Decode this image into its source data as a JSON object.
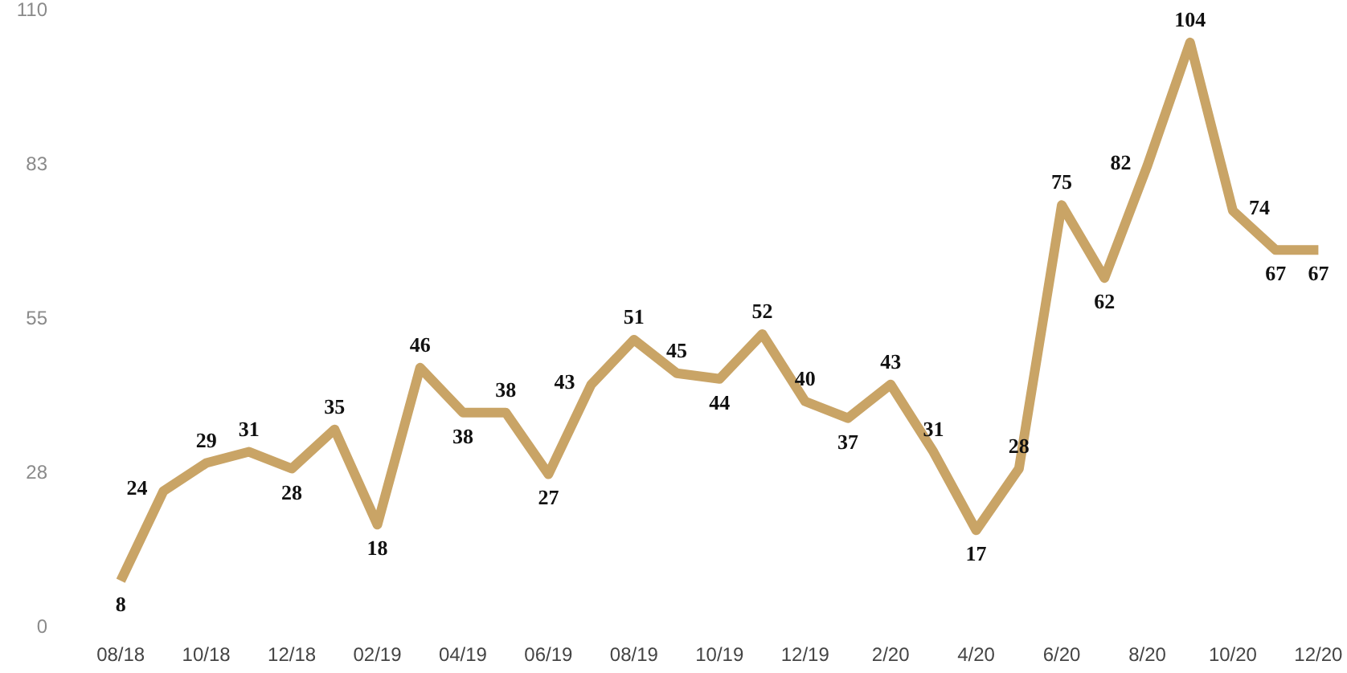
{
  "chart_data": {
    "type": "line",
    "categories": [
      "08/18",
      null,
      "10/18",
      null,
      "12/18",
      null,
      "02/19",
      null,
      "04/19",
      null,
      "06/19",
      null,
      "08/19",
      null,
      "10/19",
      null,
      "12/19",
      null,
      "2/20",
      null,
      "4/20",
      null,
      "6/20",
      null,
      "8/20",
      null,
      "10/20",
      null,
      "12/20"
    ],
    "series": [
      {
        "color": "#c9a466",
        "values": [
          8,
          24,
          29,
          31,
          28,
          35,
          18,
          46,
          38,
          38,
          27,
          43,
          51,
          45,
          44,
          52,
          40,
          37,
          43,
          31,
          17,
          28,
          75,
          62,
          82,
          104,
          74,
          67,
          67
        ]
      }
    ],
    "ylim": [
      0,
      110
    ],
    "yticks": [
      0,
      {
        "value": 27.5,
        "label": "28"
      },
      55,
      {
        "value": 82.5,
        "label": "83"
      },
      110
    ],
    "grid": false,
    "marker": "none",
    "line_style": "solid",
    "data_labels": true
  }
}
